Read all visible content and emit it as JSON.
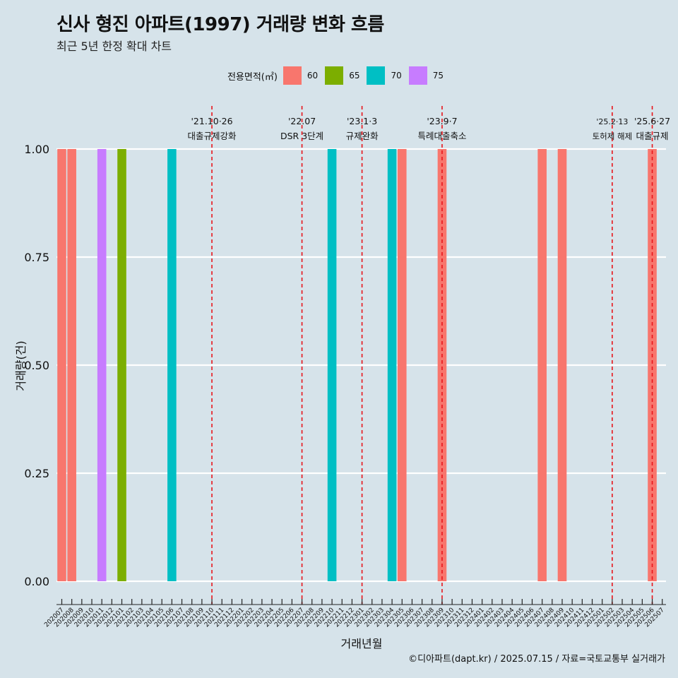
{
  "title": "신사 형진 아파트(1997) 거래량 변화 흐름",
  "subtitle": "최근 5년 한정 확대 차트",
  "caption": "©디아파트(dapt.kr) / 2025.07.15 / 자료=국토교통부 실거래가",
  "legend": {
    "title": "전용면적(㎡)",
    "items": [
      {
        "label": "60",
        "color": "#f8766d"
      },
      {
        "label": "65",
        "color": "#7cae00"
      },
      {
        "label": "70",
        "color": "#00bfc4"
      },
      {
        "label": "75",
        "color": "#c77cff"
      }
    ]
  },
  "chart_data": {
    "type": "bar",
    "xlabel": "거래년월",
    "ylabel": "거래량(건)",
    "ylim": [
      0,
      1
    ],
    "yticks": [
      "0.00",
      "0.25",
      "0.50",
      "0.75",
      "1.00"
    ],
    "grid": "horizontal",
    "legend_position": "top",
    "categories": [
      "202007",
      "202008",
      "202009",
      "202010",
      "202011",
      "202012",
      "202101",
      "202102",
      "202103",
      "202104",
      "202105",
      "202106",
      "202107",
      "202108",
      "202109",
      "202110",
      "202111",
      "202112",
      "202201",
      "202202",
      "202203",
      "202204",
      "202205",
      "202206",
      "202207",
      "202208",
      "202209",
      "202210",
      "202211",
      "202212",
      "202301",
      "202302",
      "202303",
      "202304",
      "202305",
      "202306",
      "202307",
      "202308",
      "202309",
      "202310",
      "202311",
      "202312",
      "202401",
      "202402",
      "202403",
      "202404",
      "202405",
      "202406",
      "202407",
      "202408",
      "202409",
      "202410",
      "202411",
      "202412",
      "202501",
      "202502",
      "202503",
      "202504",
      "202505",
      "202506",
      "202507"
    ],
    "bars": [
      {
        "x": "202007",
        "area": "60",
        "value": 1
      },
      {
        "x": "202008",
        "area": "60",
        "value": 1
      },
      {
        "x": "202011",
        "area": "75",
        "value": 1
      },
      {
        "x": "202101",
        "area": "65",
        "value": 1
      },
      {
        "x": "202106",
        "area": "70",
        "value": 1
      },
      {
        "x": "202210",
        "area": "70",
        "value": 1
      },
      {
        "x": "202304",
        "area": "70",
        "value": 1
      },
      {
        "x": "202305",
        "area": "60",
        "value": 1
      },
      {
        "x": "202309",
        "area": "60",
        "value": 1
      },
      {
        "x": "202407",
        "area": "60",
        "value": 1
      },
      {
        "x": "202409",
        "area": "60",
        "value": 1
      },
      {
        "x": "202506",
        "area": "60",
        "value": 1
      }
    ],
    "annotations": [
      {
        "x": "202110",
        "date": "'21.10·26",
        "text": "대출규제강화"
      },
      {
        "x": "202207",
        "date": "'22.07",
        "text": "DSR 3단계"
      },
      {
        "x": "202301",
        "date": "'23.1·3",
        "text": "규제완화"
      },
      {
        "x": "202309",
        "date": "'23.9·7",
        "text": "특례대출축소"
      },
      {
        "x": "202502",
        "date": "'25.2·13",
        "text": "토허제 해제"
      },
      {
        "x": "202506",
        "date": "'25.6·27",
        "text": "대출규제"
      }
    ]
  }
}
